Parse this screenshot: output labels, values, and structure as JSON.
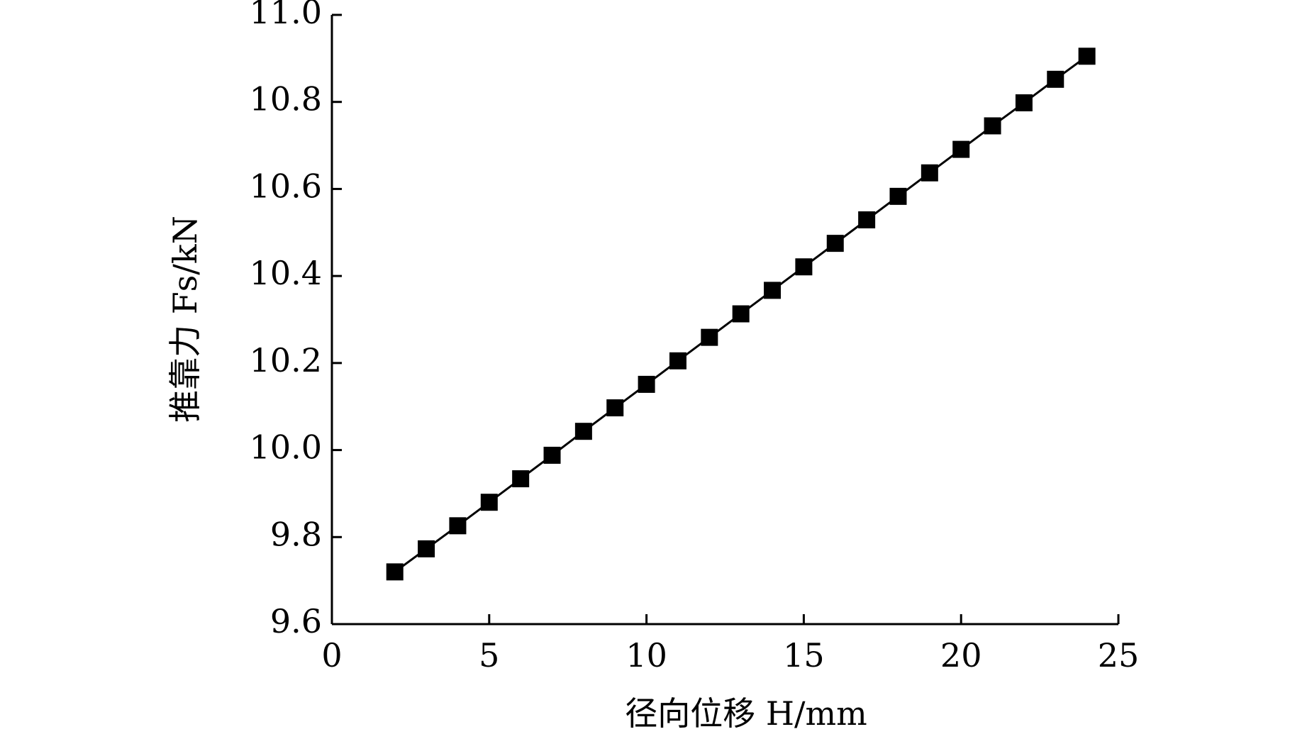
{
  "chart_data": {
    "type": "line",
    "xlabel": "径向位移 H/mm",
    "ylabel": "推靠力 Fs/kN",
    "x": [
      2,
      3,
      4,
      5,
      6,
      7,
      8,
      9,
      10,
      11,
      12,
      13,
      14,
      15,
      16,
      17,
      18,
      19,
      20,
      21,
      22,
      23,
      24
    ],
    "series": [
      {
        "color": "#000000",
        "marker": "square",
        "values": [
          9.72,
          9.773,
          9.826,
          9.88,
          9.934,
          9.988,
          10.043,
          10.097,
          10.151,
          10.205,
          10.259,
          10.313,
          10.367,
          10.421,
          10.475,
          10.529,
          10.583,
          10.637,
          10.691,
          10.745,
          10.798,
          10.852,
          10.905
        ]
      }
    ],
    "xlim": [
      0,
      25
    ],
    "xticks": [
      0,
      5,
      10,
      15,
      20,
      25
    ],
    "ylim": [
      9.6,
      11.0
    ],
    "yticks": [
      9.6,
      9.8,
      {
        "value": 10.0,
        "label": "10.0"
      },
      10.2,
      10.4,
      10.6,
      10.8,
      {
        "value": 11.0,
        "label": "11.0"
      }
    ],
    "grid": false
  }
}
